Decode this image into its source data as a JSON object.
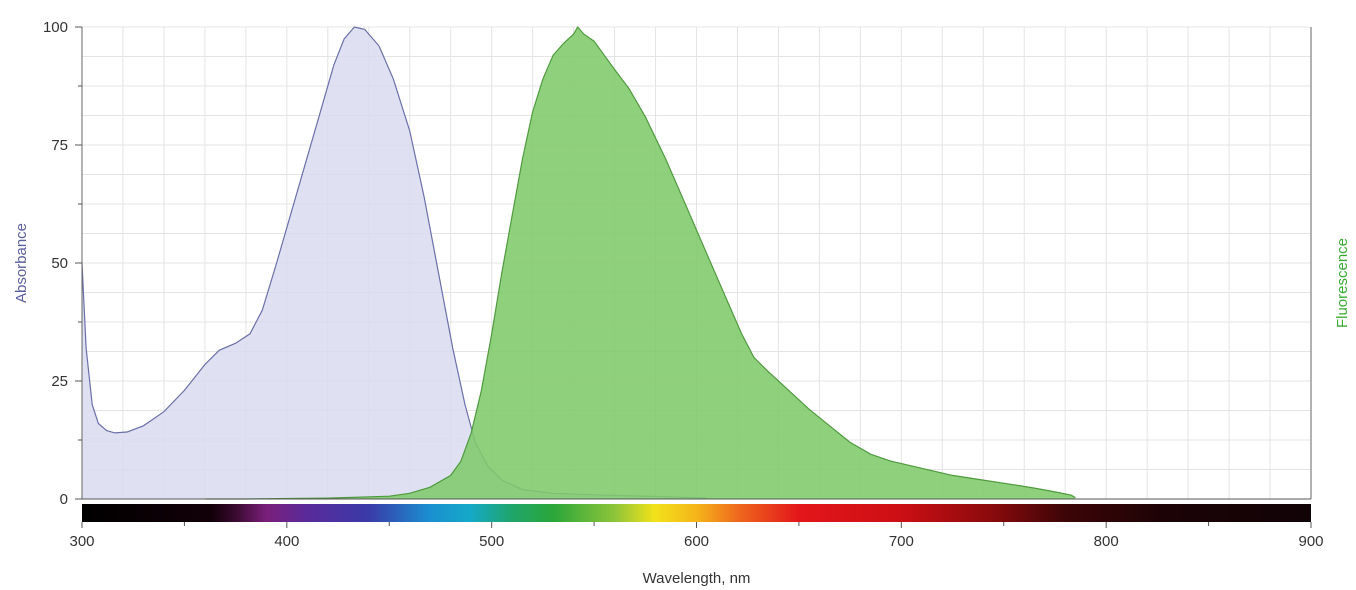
{
  "chart_data": {
    "type": "area",
    "xlabel": "Wavelength, nm",
    "ylabel": "Absorbance",
    "y2label": "Fluorescence",
    "xlim": [
      300,
      900
    ],
    "ylim": [
      0,
      100
    ],
    "x_ticks": [
      300,
      400,
      500,
      600,
      700,
      800,
      900
    ],
    "y_ticks": [
      0,
      25,
      50,
      75,
      100
    ],
    "grid": true,
    "legend": "none",
    "spectrum_bar": true,
    "colors": {
      "absorbance_fill": "#d9dcf0",
      "absorbance_line": "#6b70a8",
      "fluorescence_fill": "#80c96b",
      "fluorescence_line": "#4f9a3e",
      "ylabel": "#5a5f9e",
      "y2label": "#3aaa35",
      "grid": "#e4e4e4"
    },
    "series": [
      {
        "key": "absorbance",
        "values": [
          [
            300,
            50
          ],
          [
            302,
            32
          ],
          [
            305,
            20
          ],
          [
            308,
            16
          ],
          [
            312,
            14.5
          ],
          [
            316,
            14
          ],
          [
            322,
            14.2
          ],
          [
            330,
            15.5
          ],
          [
            340,
            18.5
          ],
          [
            350,
            23
          ],
          [
            360,
            28.5
          ],
          [
            367,
            31.5
          ],
          [
            375,
            33
          ],
          [
            382,
            35
          ],
          [
            388,
            40
          ],
          [
            395,
            50
          ],
          [
            405,
            65
          ],
          [
            415,
            80
          ],
          [
            423,
            92
          ],
          [
            428,
            97.5
          ],
          [
            433,
            100
          ],
          [
            438,
            99.5
          ],
          [
            445,
            96
          ],
          [
            452,
            89
          ],
          [
            460,
            78
          ],
          [
            467,
            64
          ],
          [
            474,
            48
          ],
          [
            481,
            32
          ],
          [
            487,
            20
          ],
          [
            492,
            12
          ],
          [
            498,
            7
          ],
          [
            505,
            4
          ],
          [
            515,
            2
          ],
          [
            530,
            1.2
          ],
          [
            550,
            0.9
          ],
          [
            575,
            0.6
          ],
          [
            600,
            0.3
          ],
          [
            605,
            0.2
          ]
        ]
      },
      {
        "key": "fluorescence",
        "values": [
          [
            360,
            0
          ],
          [
            380,
            0
          ],
          [
            420,
            0.2
          ],
          [
            450,
            0.6
          ],
          [
            460,
            1.2
          ],
          [
            470,
            2.5
          ],
          [
            480,
            5
          ],
          [
            485,
            8
          ],
          [
            490,
            14
          ],
          [
            495,
            23
          ],
          [
            500,
            35
          ],
          [
            505,
            48
          ],
          [
            510,
            60
          ],
          [
            515,
            72
          ],
          [
            520,
            82
          ],
          [
            525,
            89
          ],
          [
            530,
            94
          ],
          [
            535,
            96.5
          ],
          [
            540,
            98.5
          ],
          [
            542,
            100
          ],
          [
            545,
            98.5
          ],
          [
            550,
            97
          ],
          [
            555,
            94
          ],
          [
            560,
            91
          ],
          [
            567,
            87
          ],
          [
            575,
            81
          ],
          [
            585,
            72
          ],
          [
            595,
            62
          ],
          [
            605,
            52
          ],
          [
            615,
            42
          ],
          [
            622,
            35
          ],
          [
            628,
            30
          ],
          [
            635,
            27
          ],
          [
            645,
            23
          ],
          [
            655,
            19
          ],
          [
            665,
            15.5
          ],
          [
            675,
            12
          ],
          [
            685,
            9.5
          ],
          [
            695,
            8
          ],
          [
            710,
            6.5
          ],
          [
            725,
            5
          ],
          [
            740,
            4
          ],
          [
            755,
            3
          ],
          [
            765,
            2.3
          ],
          [
            775,
            1.5
          ],
          [
            783,
            0.8
          ],
          [
            785,
            0.3
          ]
        ]
      }
    ]
  }
}
